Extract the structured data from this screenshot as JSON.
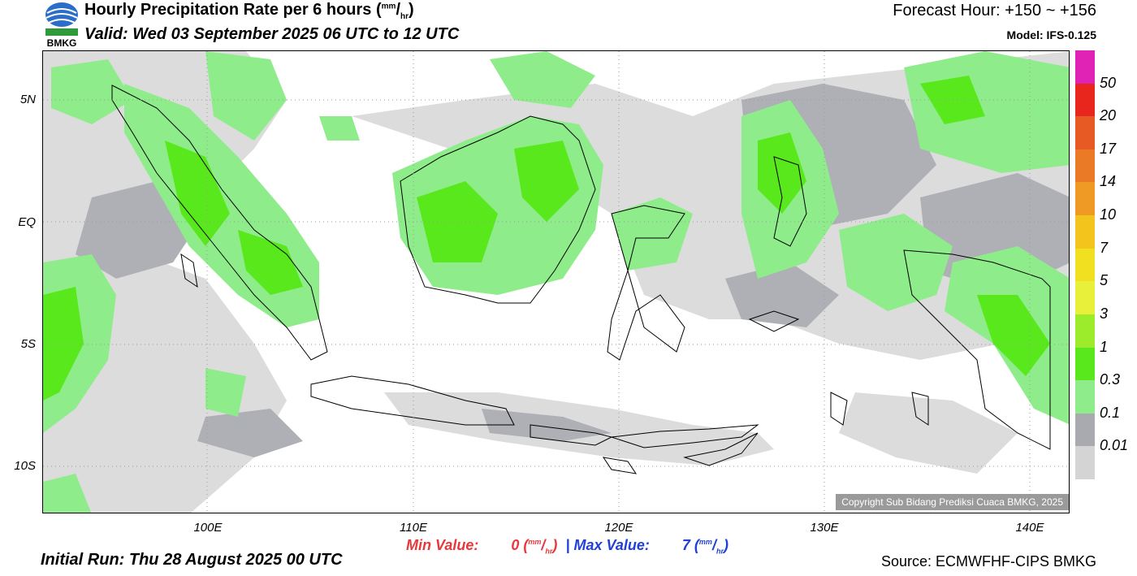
{
  "header": {
    "title_main": "Hourly Precipitation Rate per 6 hours",
    "title_unit_sup": "mm",
    "title_unit_sub": "hr",
    "valid": "Valid: Wed 03 September 2025 06 UTC to 12 UTC",
    "forecast_hour": "Forecast Hour: +150 ~ +156",
    "model": "Model: IFS-0.125"
  },
  "logo": {
    "text": "BMKG"
  },
  "map": {
    "lat_labels": [
      "5N",
      "EQ",
      "5S",
      "10S"
    ],
    "lon_labels": [
      "100E",
      "110E",
      "120E",
      "130E",
      "140E"
    ],
    "copyright": "Copyright Sub Bidang Prediksi Cuaca BMKG, 2025"
  },
  "colorbar": {
    "labels": [
      "50",
      "20",
      "17",
      "14",
      "10",
      "7",
      "5",
      "3",
      "1",
      "0.3",
      "0.1",
      "0.01"
    ],
    "colors": [
      "#e023b4",
      "#e8261e",
      "#e85a24",
      "#eb7a26",
      "#ee9a25",
      "#f2c41c",
      "#f0e020",
      "#e8f03a",
      "#9cec2c",
      "#58e81c",
      "#8eed8a",
      "#a8aab0",
      "#d4d4d4"
    ]
  },
  "stats": {
    "min_label": "Min Value:",
    "min_value": "0",
    "max_label": "Max Value:",
    "max_value": "7",
    "unit_sup": "mm",
    "unit_sub": "hr",
    "separator": "|"
  },
  "footer": {
    "initial_run": "Initial Run: Thu 28 August 2025 00 UTC",
    "source": "Source: ECMWFHF-CIPS BMKG"
  }
}
